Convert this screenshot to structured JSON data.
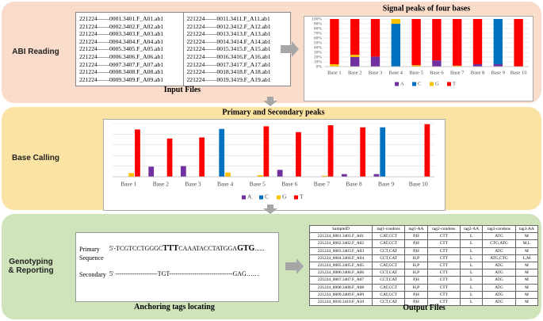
{
  "panels": [
    "ABI Reading",
    "Base Calling",
    "Genotyping & Reporting"
  ],
  "input_files": {
    "caption": "Input Files",
    "columns": [
      [
        "221224——0001.3401.F_A01.ab1",
        "221224——0002.3402.F_A02.ab1",
        "221224——0003.3403.F_A03.ab1",
        "221224——0004.3404.F_A04.ab1",
        "221224——0005.3405.F_A05.ab1",
        "221224——0006.3406.F_A06.ab1",
        "221224——0007.3407.F_A07.ab1",
        "221224——0008.3408.F_A08.ab1",
        "221224——0009.3409.F_A09.ab1"
      ],
      [
        "221224——0011.3411.F_A11.ab1",
        "221224——0012.3412.F_A12.ab1",
        "221224——0013.3413.F_A13.ab1",
        "221224——0014.3414.F_A14.ab1",
        "221224——0015.3415.F_A15.ab1",
        "221224——0016.3416.F_A16.ab1",
        "221224——0017.3417.F_A17.ab1",
        "221224——0018.3418.F_A18.ab1",
        "221224——0019.3419.F_A19.ab1"
      ]
    ]
  },
  "chart_data": [
    {
      "type": "stacked_bar",
      "title": "Signal peaks of four bases",
      "categories": [
        "Base 1",
        "Base 2",
        "Base 3",
        "Base 4",
        "Base 5",
        "Base 6",
        "Base 7",
        "Base 8",
        "Base 9",
        "Base 10"
      ],
      "series": [
        {
          "name": "A",
          "color": "#7030a0",
          "values": [
            0,
            20,
            21,
            0,
            0,
            13,
            0,
            5,
            5,
            0
          ]
        },
        {
          "name": "C",
          "color": "#0070c0",
          "values": [
            0,
            0,
            0,
            90,
            0,
            0,
            0,
            0,
            95,
            0
          ]
        },
        {
          "name": "G",
          "color": "#ffc000",
          "values": [
            5,
            5,
            0,
            10,
            3,
            0,
            2,
            0,
            0,
            0
          ]
        },
        {
          "name": "T",
          "color": "#ff0000",
          "values": [
            95,
            75,
            79,
            0,
            97,
            87,
            98,
            95,
            0,
            100
          ]
        }
      ],
      "ylim": [
        0,
        100
      ],
      "yticks": [
        {
          "value": 0,
          "label": "0%"
        },
        {
          "value": 10,
          "label": "10%"
        },
        {
          "value": 20,
          "label": "20%"
        },
        {
          "value": 30,
          "label": "30%"
        },
        {
          "value": 40,
          "label": "40%"
        },
        {
          "value": 50,
          "label": "50%"
        },
        {
          "value": 60,
          "label": "60%"
        },
        {
          "value": 70,
          "label": "70%"
        },
        {
          "value": 80,
          "label": "80%"
        },
        {
          "value": 90,
          "label": "90%"
        },
        {
          "value": 100,
          "label": "100%"
        }
      ],
      "grid": true,
      "legend": "bottom"
    },
    {
      "type": "bar",
      "title": "Primary and Secondary  peaks",
      "categories": [
        "Base 1",
        "Base 2",
        "Base 3",
        "Base 4",
        "Base 5",
        "Base 6",
        "Base 7",
        "Base 8",
        "Base 9",
        "Base 10"
      ],
      "series": [
        {
          "name": "A",
          "color": "#7030a0",
          "values": [
            0,
            0.19,
            0.2,
            0,
            0,
            0.13,
            0,
            0.05,
            0.05,
            0
          ]
        },
        {
          "name": "C",
          "color": "#0070c0",
          "values": [
            0,
            0,
            0,
            0.9,
            0,
            0,
            0,
            0,
            0.93,
            0
          ]
        },
        {
          "name": "G",
          "color": "#ffc000",
          "values": [
            0.07,
            0,
            0,
            0.08,
            0.03,
            0,
            0.02,
            0,
            0,
            0
          ]
        },
        {
          "name": "T",
          "color": "#ff0000",
          "values": [
            0.89,
            0.72,
            0.74,
            0,
            0.95,
            0.84,
            0.97,
            0.93,
            0,
            0.99
          ]
        }
      ],
      "ylim": [
        0,
        1
      ],
      "grid": true,
      "legend": "bottom"
    }
  ],
  "sequences": {
    "primary_label": "Primary Sequence",
    "primary": [
      "5'-TCGTCCTGGGC",
      "TTT",
      "CAAATACCTATGGA",
      "GTG",
      "......"
    ],
    "secondary_label": "Secondary",
    "secondary": "5' --------------------TGT------------------------------GAG……",
    "caption": "Anchoring tags locating"
  },
  "output": {
    "caption": "Output Files",
    "header": [
      "SampleID",
      "tag1-condons",
      "tag1-AA",
      "tag2-condons",
      "tag2-AA",
      "tag3-condons",
      "tag3-AA"
    ],
    "rows": [
      [
        "221224_0001.3401.F_A01",
        "CAT,CCT",
        "P,H",
        "CTT",
        "L",
        "ATG",
        "M"
      ],
      [
        "221224_0002.3402.F_A02",
        "CAT,CCT",
        "P,H",
        "CTT",
        "L",
        "CTG,ATG",
        "M,L"
      ],
      [
        "221224_0003.3403.F_A03",
        "CCT,CAT",
        "P,H",
        "CTT",
        "L",
        "ATG",
        "M"
      ],
      [
        "221224_0004.3404.F_A04",
        "CCT,CAT",
        "H,P",
        "CTT",
        "L",
        "ATG,CTG",
        "L,M"
      ],
      [
        "221224_0005.3405.F_A05",
        "CAT,CCT",
        "H,P",
        "CTT",
        "L",
        "ATG",
        "M"
      ],
      [
        "221224_0006.3406.F_A06",
        "CCT,CAT",
        "H,P",
        "CTT",
        "L",
        "ATG",
        "M"
      ],
      [
        "221224_0007.3407.F_A07",
        "CCT,CAT",
        "P,H",
        "CTT",
        "L",
        "ATG",
        "M"
      ],
      [
        "221224_0008.3408.F_A08",
        "CAT,CCT",
        "H,P",
        "CTT",
        "L",
        "ATG",
        "M"
      ],
      [
        "221224_0009.3409.F_A09",
        "CAT,CCT",
        "P,H",
        "CTT",
        "L",
        "ATG",
        "M"
      ],
      [
        "221224_0010.3410.F_A10",
        "CCT,CAT",
        "P,H",
        "CTT",
        "L",
        "ATG",
        "M"
      ]
    ]
  }
}
